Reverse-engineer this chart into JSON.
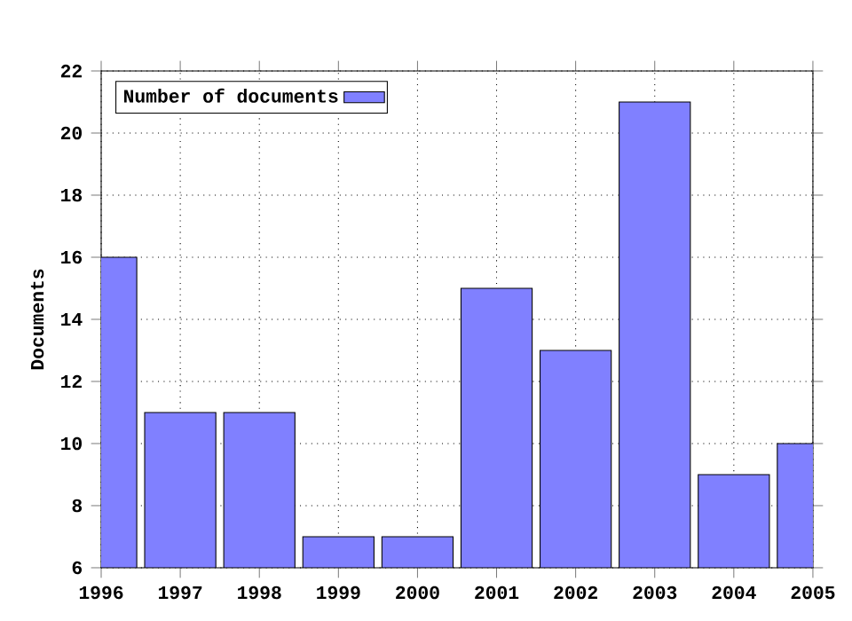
{
  "chart_data": {
    "type": "bar",
    "ylabel": "Documents",
    "x": [
      1996,
      1997,
      1998,
      1999,
      2000,
      2001,
      2002,
      2003,
      2004,
      2005
    ],
    "series": [
      {
        "name": "Number of documents",
        "color": "#8080ff",
        "values": [
          16,
          11,
          11,
          7,
          7,
          15,
          13,
          21,
          9,
          10
        ]
      }
    ],
    "xlim": [
      1996,
      2005
    ],
    "xticks": [
      1996,
      1997,
      1998,
      1999,
      2000,
      2001,
      2002,
      2003,
      2004,
      2005
    ],
    "ylim": [
      6,
      22
    ],
    "yticks": [
      6,
      8,
      10,
      12,
      14,
      16,
      18,
      20,
      22
    ],
    "grid": true,
    "legend": "top left"
  }
}
